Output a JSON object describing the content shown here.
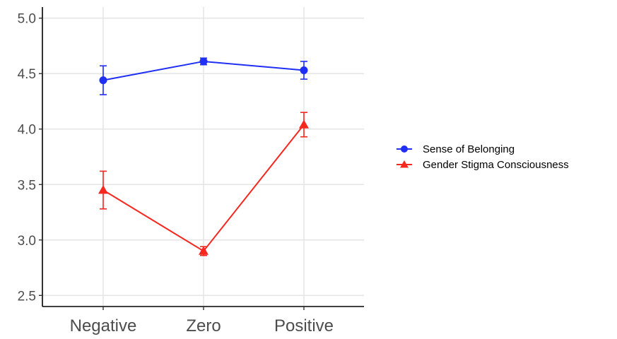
{
  "chart_data": {
    "type": "line",
    "categories": [
      "Negative",
      "Zero",
      "Positive"
    ],
    "ylim": [
      2.4,
      5.1
    ],
    "yticks": [
      2.5,
      3.0,
      3.5,
      4.0,
      4.5,
      5.0
    ],
    "ytick_labels": [
      "2.5",
      "3.0",
      "3.5",
      "4.0",
      "4.5",
      "5.0"
    ],
    "grid": true,
    "legend_position": "right",
    "series": [
      {
        "name": "Sense of Belonging",
        "color": "#1f2ff5",
        "marker": "circle",
        "values": [
          4.44,
          4.61,
          4.53
        ],
        "error_low": [
          4.31,
          4.58,
          4.45
        ],
        "error_high": [
          4.57,
          4.64,
          4.61
        ]
      },
      {
        "name": "Gender Stigma Consciousness",
        "color": "#f5281f",
        "marker": "triangle",
        "values": [
          3.45,
          2.9,
          4.04
        ],
        "error_low": [
          3.28,
          2.86,
          3.93
        ],
        "error_high": [
          3.62,
          2.94,
          4.15
        ]
      }
    ]
  }
}
